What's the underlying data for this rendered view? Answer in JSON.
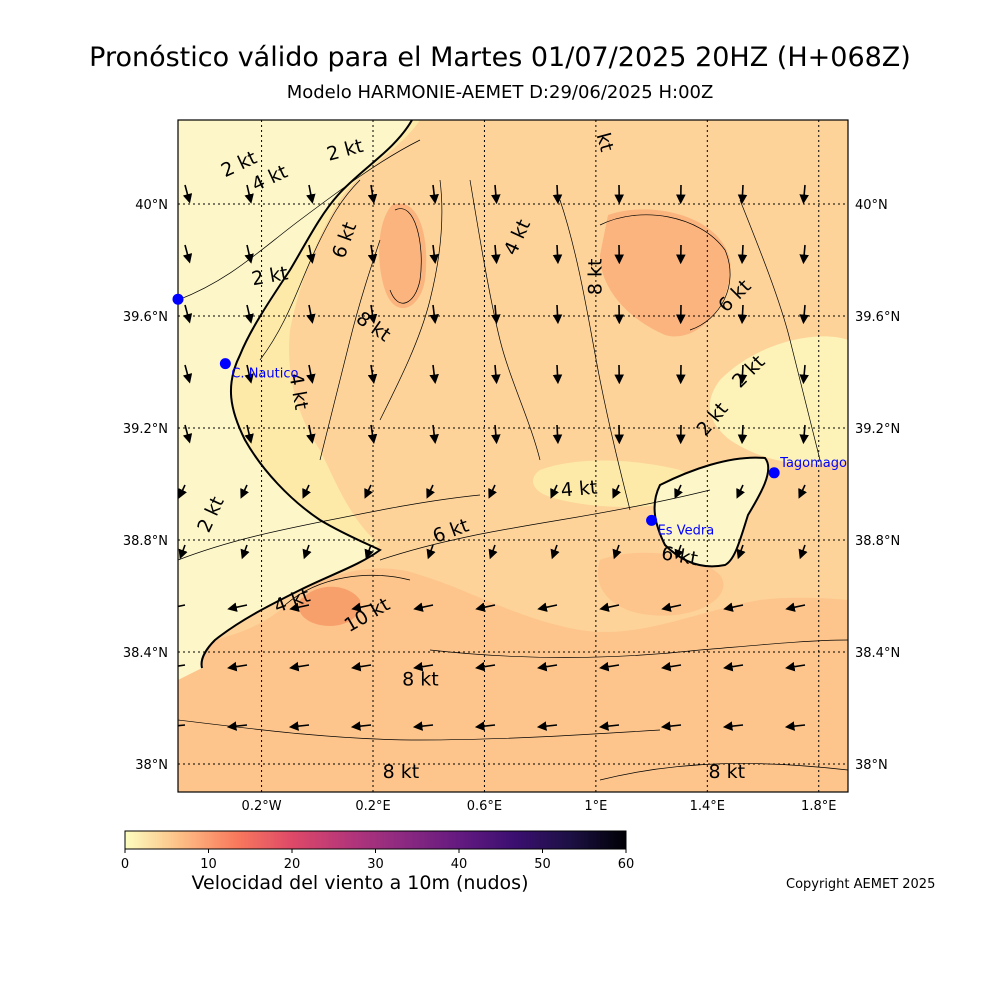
{
  "title": "Pronóstico válido para el Martes 01/07/2025 20HZ (H+068Z)",
  "subtitle": "Modelo HARMONIE-AEMET D:29/06/2025 H:00Z",
  "map": {
    "lat_labels": [
      "40°N",
      "39.6°N",
      "39.2°N",
      "38.8°N",
      "38.4°N",
      "38°N"
    ],
    "lon_labels": [
      "0.2°W",
      "0.2°E",
      "0.6°E",
      "1°E",
      "1.4°E",
      "1.8°E"
    ],
    "stations": [
      {
        "name": "",
        "lon": -0.5,
        "lat": 39.66
      },
      {
        "name": "C. Nautico",
        "lon": -0.33,
        "lat": 39.43
      },
      {
        "name": "Es Vedra",
        "lon": 1.2,
        "lat": 38.87
      },
      {
        "name": "Tagomago",
        "lon": 1.64,
        "lat": 39.04
      }
    ],
    "contour_labels": [
      {
        "text": "2 kt",
        "lon": -0.28,
        "lat": 40.14,
        "rot": -25
      },
      {
        "text": "4 kt",
        "lon": -0.17,
        "lat": 40.09,
        "rot": -25
      },
      {
        "text": "2 kt",
        "lon": 0.1,
        "lat": 40.19,
        "rot": -15
      },
      {
        "text": "kt",
        "lon": 1.03,
        "lat": 40.22,
        "rot": 75
      },
      {
        "text": "6 kt",
        "lon": 0.1,
        "lat": 39.87,
        "rot": -70
      },
      {
        "text": "4 kt",
        "lon": 0.72,
        "lat": 39.88,
        "rot": -65
      },
      {
        "text": "2 kt",
        "lon": -0.17,
        "lat": 39.74,
        "rot": -10
      },
      {
        "text": "8 kt",
        "lon": 1.0,
        "lat": 39.74,
        "rot": -90
      },
      {
        "text": "6 kt",
        "lon": 1.5,
        "lat": 39.67,
        "rot": -45
      },
      {
        "text": "8 kt",
        "lon": 0.2,
        "lat": 39.56,
        "rot": 35
      },
      {
        "text": "4 kt",
        "lon": -0.07,
        "lat": 39.33,
        "rot": 80
      },
      {
        "text": "2 kt",
        "lon": 1.55,
        "lat": 39.4,
        "rot": -45
      },
      {
        "text": "2 kt",
        "lon": 1.42,
        "lat": 39.23,
        "rot": -50
      },
      {
        "text": "4 kt",
        "lon": 0.94,
        "lat": 38.98,
        "rot": -5
      },
      {
        "text": "2 kt",
        "lon": -0.38,
        "lat": 38.89,
        "rot": -65
      },
      {
        "text": "6 kt",
        "lon": 0.48,
        "lat": 38.83,
        "rot": -20
      },
      {
        "text": "6 kt",
        "lon": 1.3,
        "lat": 38.74,
        "rot": 10
      },
      {
        "text": "4 kt",
        "lon": -0.09,
        "lat": 38.58,
        "rot": -20
      },
      {
        "text": "10 kt",
        "lon": 0.18,
        "lat": 38.53,
        "rot": -30
      },
      {
        "text": "8 kt",
        "lon": 0.37,
        "lat": 38.3,
        "rot": 0
      },
      {
        "text": "8 kt",
        "lon": 0.3,
        "lat": 37.97,
        "rot": 0
      },
      {
        "text": "8 kt",
        "lon": 1.47,
        "lat": 37.97,
        "rot": 0
      }
    ]
  },
  "colorbar": {
    "ticks": [
      "0",
      "10",
      "20",
      "30",
      "40",
      "50",
      "60"
    ],
    "label": "Velocidad del viento a 10m (nudos)",
    "colors": [
      "#fcfdbf",
      "#fdbe85",
      "#f9795d",
      "#de4968",
      "#b5367a",
      "#8c2981",
      "#641a80",
      "#3b0f70",
      "#1c1044",
      "#000004"
    ]
  },
  "copyright": "Copyright AEMET 2025",
  "colors": {
    "station": "#0000ff",
    "coast": "#000000",
    "field_low": "#fdf3b8",
    "field_mid": "#fdd39a",
    "field_high": "#fbb47e"
  }
}
